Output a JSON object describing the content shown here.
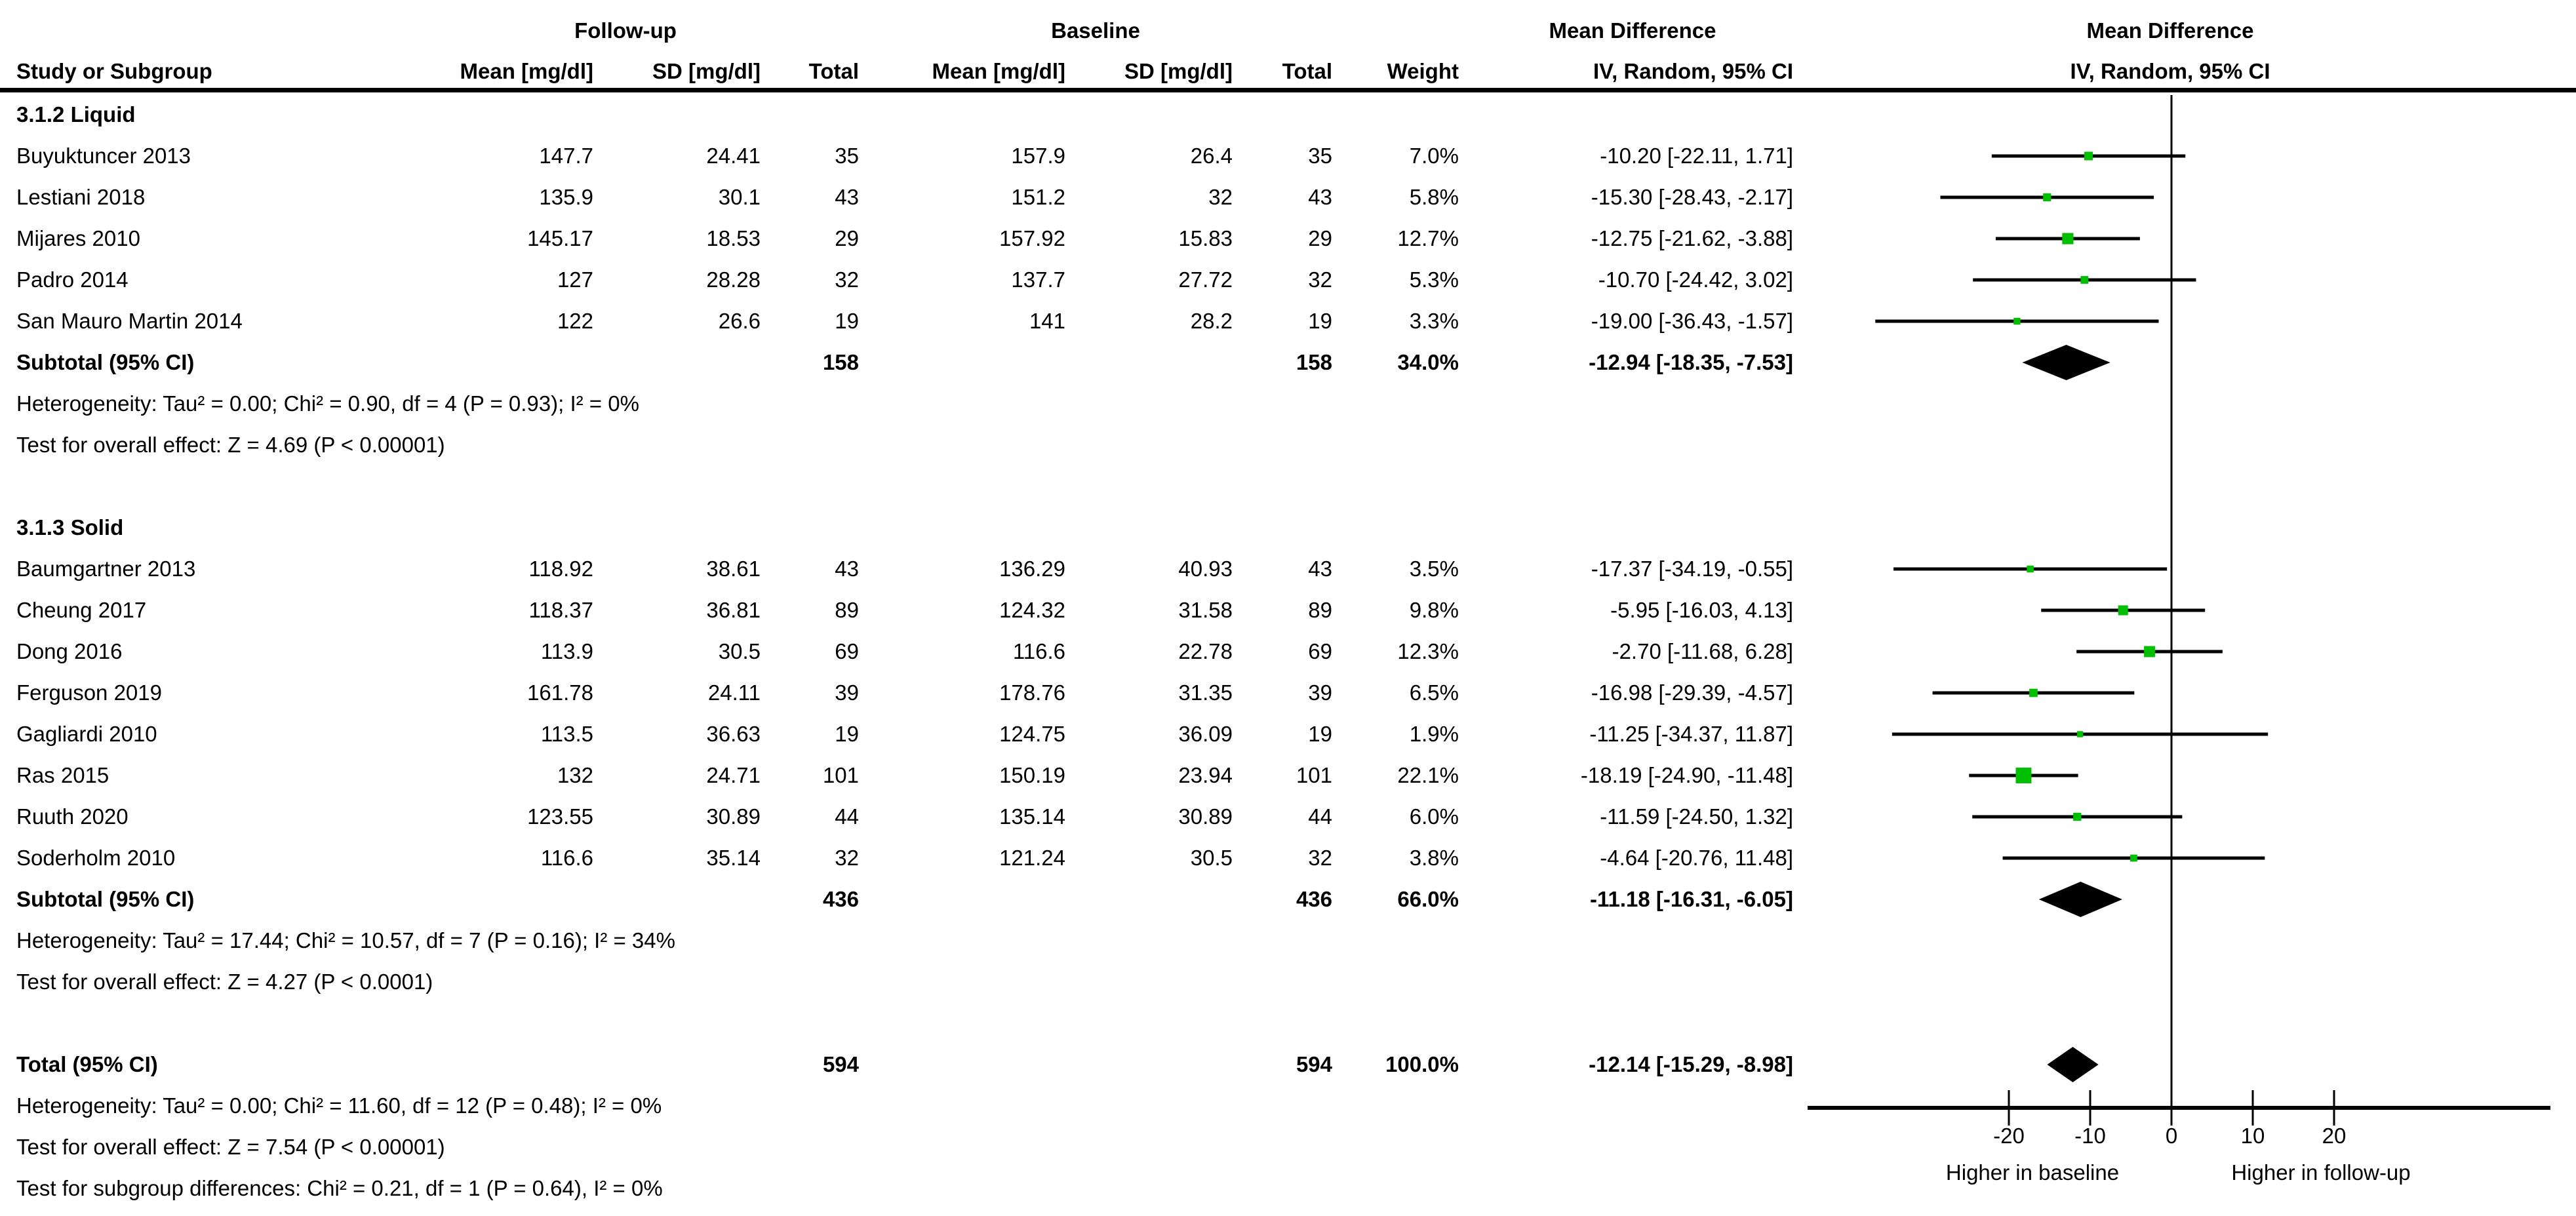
{
  "table": {
    "group_headers": {
      "followup": "Follow-up",
      "baseline": "Baseline",
      "mean_difference_left": "Mean Difference",
      "mean_difference_right": "Mean Difference"
    },
    "headers": {
      "study": "Study or Subgroup",
      "mean": "Mean [mg/dl]",
      "sd": "SD [mg/dl]",
      "total": "Total",
      "weight": "Weight",
      "iv": "IV, Random, 95% CI"
    }
  },
  "chart_data": {
    "type": "forest",
    "effect_measure": "Mean Difference, IV, Random, 95% CI",
    "axis_ticks": [
      -20,
      -10,
      0,
      10,
      20
    ],
    "axis_range": [
      -45,
      46
    ],
    "xlabel_left": "Higher in baseline",
    "xlabel_right": "Higher in follow-up",
    "colors": {
      "marker": "#00be00",
      "line": "#000000",
      "diamond": "#000000"
    },
    "subgroups": [
      {
        "name": "3.1.2 Liquid",
        "studies": [
          {
            "name": "Buyuktuncer 2013",
            "fu_mean": "147.7",
            "fu_sd": "24.41",
            "fu_n": "35",
            "bl_mean": "157.9",
            "bl_sd": "26.4",
            "bl_n": "35",
            "weight": "7.0%",
            "weight_val": 7.0,
            "md": -10.2,
            "lo": -22.11,
            "hi": 1.71,
            "ci_label": "-10.20 [-22.11, 1.71]"
          },
          {
            "name": "Lestiani 2018",
            "fu_mean": "135.9",
            "fu_sd": "30.1",
            "fu_n": "43",
            "bl_mean": "151.2",
            "bl_sd": "32",
            "bl_n": "43",
            "weight": "5.8%",
            "weight_val": 5.8,
            "md": -15.3,
            "lo": -28.43,
            "hi": -2.17,
            "ci_label": "-15.30 [-28.43, -2.17]"
          },
          {
            "name": "Mijares 2010",
            "fu_mean": "145.17",
            "fu_sd": "18.53",
            "fu_n": "29",
            "bl_mean": "157.92",
            "bl_sd": "15.83",
            "bl_n": "29",
            "weight": "12.7%",
            "weight_val": 12.7,
            "md": -12.75,
            "lo": -21.62,
            "hi": -3.88,
            "ci_label": "-12.75 [-21.62, -3.88]"
          },
          {
            "name": "Padro 2014",
            "fu_mean": "127",
            "fu_sd": "28.28",
            "fu_n": "32",
            "bl_mean": "137.7",
            "bl_sd": "27.72",
            "bl_n": "32",
            "weight": "5.3%",
            "weight_val": 5.3,
            "md": -10.7,
            "lo": -24.42,
            "hi": 3.02,
            "ci_label": "-10.70 [-24.42, 3.02]"
          },
          {
            "name": "San Mauro Martin 2014",
            "fu_mean": "122",
            "fu_sd": "26.6",
            "fu_n": "19",
            "bl_mean": "141",
            "bl_sd": "28.2",
            "bl_n": "19",
            "weight": "3.3%",
            "weight_val": 3.3,
            "md": -19.0,
            "lo": -36.43,
            "hi": -1.57,
            "ci_label": "-19.00 [-36.43, -1.57]"
          }
        ],
        "subtotal": {
          "label": "Subtotal (95% CI)",
          "fu_n": "158",
          "bl_n": "158",
          "weight": "34.0%",
          "md": -12.94,
          "lo": -18.35,
          "hi": -7.53,
          "ci_label": "-12.94 [-18.35, -7.53]"
        },
        "heterogeneity": "Heterogeneity: Tau² = 0.00; Chi² = 0.90, df = 4 (P = 0.93); I² = 0%",
        "overall_effect": "Test for overall effect: Z = 4.69 (P < 0.00001)"
      },
      {
        "name": "3.1.3 Solid",
        "studies": [
          {
            "name": "Baumgartner 2013",
            "fu_mean": "118.92",
            "fu_sd": "38.61",
            "fu_n": "43",
            "bl_mean": "136.29",
            "bl_sd": "40.93",
            "bl_n": "43",
            "weight": "3.5%",
            "weight_val": 3.5,
            "md": -17.37,
            "lo": -34.19,
            "hi": -0.55,
            "ci_label": "-17.37 [-34.19, -0.55]"
          },
          {
            "name": "Cheung 2017",
            "fu_mean": "118.37",
            "fu_sd": "36.81",
            "fu_n": "89",
            "bl_mean": "124.32",
            "bl_sd": "31.58",
            "bl_n": "89",
            "weight": "9.8%",
            "weight_val": 9.8,
            "md": -5.95,
            "lo": -16.03,
            "hi": 4.13,
            "ci_label": "-5.95 [-16.03, 4.13]"
          },
          {
            "name": "Dong 2016",
            "fu_mean": "113.9",
            "fu_sd": "30.5",
            "fu_n": "69",
            "bl_mean": "116.6",
            "bl_sd": "22.78",
            "bl_n": "69",
            "weight": "12.3%",
            "weight_val": 12.3,
            "md": -2.7,
            "lo": -11.68,
            "hi": 6.28,
            "ci_label": "-2.70 [-11.68, 6.28]"
          },
          {
            "name": "Ferguson 2019",
            "fu_mean": "161.78",
            "fu_sd": "24.11",
            "fu_n": "39",
            "bl_mean": "178.76",
            "bl_sd": "31.35",
            "bl_n": "39",
            "weight": "6.5%",
            "weight_val": 6.5,
            "md": -16.98,
            "lo": -29.39,
            "hi": -4.57,
            "ci_label": "-16.98 [-29.39, -4.57]"
          },
          {
            "name": "Gagliardi 2010",
            "fu_mean": "113.5",
            "fu_sd": "36.63",
            "fu_n": "19",
            "bl_mean": "124.75",
            "bl_sd": "36.09",
            "bl_n": "19",
            "weight": "1.9%",
            "weight_val": 1.9,
            "md": -11.25,
            "lo": -34.37,
            "hi": 11.87,
            "ci_label": "-11.25 [-34.37, 11.87]"
          },
          {
            "name": "Ras 2015",
            "fu_mean": "132",
            "fu_sd": "24.71",
            "fu_n": "101",
            "bl_mean": "150.19",
            "bl_sd": "23.94",
            "bl_n": "101",
            "weight": "22.1%",
            "weight_val": 22.1,
            "md": -18.19,
            "lo": -24.9,
            "hi": -11.48,
            "ci_label": "-18.19 [-24.90, -11.48]"
          },
          {
            "name": "Ruuth 2020",
            "fu_mean": "123.55",
            "fu_sd": "30.89",
            "fu_n": "44",
            "bl_mean": "135.14",
            "bl_sd": "30.89",
            "bl_n": "44",
            "weight": "6.0%",
            "weight_val": 6.0,
            "md": -11.59,
            "lo": -24.5,
            "hi": 1.32,
            "ci_label": "-11.59 [-24.50, 1.32]"
          },
          {
            "name": "Soderholm 2010",
            "fu_mean": "116.6",
            "fu_sd": "35.14",
            "fu_n": "32",
            "bl_mean": "121.24",
            "bl_sd": "30.5",
            "bl_n": "32",
            "weight": "3.8%",
            "weight_val": 3.8,
            "md": -4.64,
            "lo": -20.76,
            "hi": 11.48,
            "ci_label": "-4.64 [-20.76, 11.48]"
          }
        ],
        "subtotal": {
          "label": "Subtotal (95% CI)",
          "fu_n": "436",
          "bl_n": "436",
          "weight": "66.0%",
          "md": -11.18,
          "lo": -16.31,
          "hi": -6.05,
          "ci_label": "-11.18 [-16.31, -6.05]"
        },
        "heterogeneity": "Heterogeneity: Tau² = 17.44; Chi² = 10.57, df = 7 (P = 0.16); I² = 34%",
        "overall_effect": "Test for overall effect: Z = 4.27 (P < 0.0001)"
      }
    ],
    "total": {
      "label": "Total (95% CI)",
      "fu_n": "594",
      "bl_n": "594",
      "weight": "100.0%",
      "md": -12.14,
      "lo": -15.29,
      "hi": -8.98,
      "ci_label": "-12.14 [-15.29, -8.98]"
    },
    "footers": [
      "Heterogeneity: Tau² = 0.00; Chi² = 11.60, df = 12 (P = 0.48); I² = 0%",
      "Test for overall effect: Z = 7.54 (P < 0.00001)",
      "Test for subgroup differences: Chi² = 0.21, df = 1 (P = 0.64), I² = 0%"
    ]
  }
}
